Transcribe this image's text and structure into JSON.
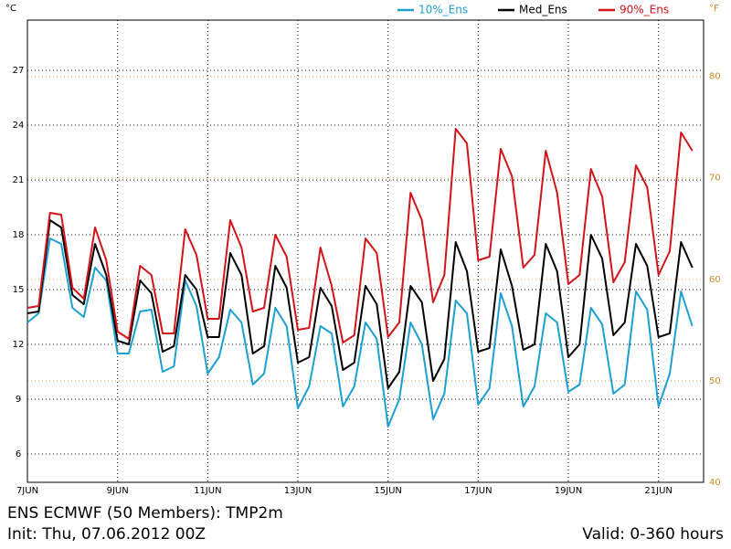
{
  "chart_data": {
    "type": "line",
    "title": "ENS ECMWF (50 Members): TMP2m",
    "subtitle": "Init: Thu, 07.06.2012 00Z",
    "annotation": "Valid: 0-360 hours",
    "y_label": "°C",
    "y2_label": "°F",
    "x": [
      0,
      6,
      12,
      18,
      24,
      30,
      36,
      42,
      48,
      54,
      60,
      66,
      72,
      78,
      84,
      90,
      96,
      102,
      108,
      114,
      120,
      126,
      132,
      138,
      144,
      150,
      156,
      162,
      168,
      174,
      180,
      186,
      192,
      198,
      204,
      210,
      216,
      222,
      228,
      234,
      240,
      246,
      252,
      258,
      264,
      270,
      276,
      282,
      288,
      294,
      300,
      306,
      312,
      318,
      324,
      330,
      336,
      342,
      348,
      354
    ],
    "xlim": [
      0,
      360
    ],
    "xticks": [
      {
        "value": 0,
        "label": "7JUN"
      },
      {
        "value": 48,
        "label": "9JUN"
      },
      {
        "value": 96,
        "label": "11JUN"
      },
      {
        "value": 144,
        "label": "13JUN"
      },
      {
        "value": 192,
        "label": "15JUN"
      },
      {
        "value": 240,
        "label": "17JUN"
      },
      {
        "value": 288,
        "label": "19JUN"
      },
      {
        "value": 336,
        "label": "21JUN"
      }
    ],
    "ylim": [
      4.45,
      29.75
    ],
    "yticks": [
      6,
      9,
      12,
      15,
      18,
      21,
      24,
      27
    ],
    "y2lim": [
      40,
      85.55
    ],
    "y2ticks": [
      40,
      50,
      60,
      70,
      80
    ],
    "grid": true,
    "legend": "top",
    "series": [
      {
        "name": "10%_Ens",
        "color": "#1e9fd2",
        "values": [
          13.2,
          13.7,
          17.8,
          17.5,
          14.0,
          13.5,
          16.2,
          15.5,
          11.5,
          11.5,
          13.8,
          13.9,
          10.5,
          10.8,
          15.5,
          14.1,
          10.4,
          11.3,
          13.9,
          13.2,
          9.8,
          10.4,
          14.0,
          13.0,
          8.5,
          9.7,
          13.0,
          12.6,
          8.6,
          9.7,
          13.2,
          12.3,
          7.5,
          9.0,
          13.2,
          12.0,
          7.9,
          9.3,
          14.4,
          13.7,
          8.7,
          9.6,
          14.8,
          13.0,
          8.6,
          9.7,
          13.7,
          13.2,
          9.4,
          9.8,
          14.0,
          13.1,
          9.3,
          9.8,
          14.9,
          13.9,
          8.6,
          10.4,
          14.9,
          13.0
        ]
      },
      {
        "name": "Med_Ens",
        "color": "#000000",
        "values": [
          13.7,
          13.8,
          18.8,
          18.4,
          14.7,
          14.2,
          17.5,
          15.8,
          12.2,
          12.0,
          15.5,
          14.8,
          11.6,
          11.9,
          15.8,
          15.0,
          12.4,
          12.4,
          17.0,
          15.8,
          11.5,
          11.9,
          16.3,
          15.1,
          11.0,
          11.3,
          15.1,
          14.1,
          10.6,
          11.0,
          15.2,
          14.2,
          9.6,
          10.5,
          15.2,
          14.3,
          10.0,
          11.2,
          17.6,
          16.0,
          11.6,
          11.8,
          17.2,
          15.2,
          11.7,
          12.0,
          17.5,
          16.0,
          11.3,
          12.0,
          18.0,
          16.7,
          12.5,
          13.2,
          17.5,
          16.3,
          12.4,
          12.6,
          17.6,
          16.2
        ]
      },
      {
        "name": "90%_Ens",
        "color": "#d0141a",
        "values": [
          14.0,
          14.1,
          19.2,
          19.1,
          15.1,
          14.5,
          18.4,
          16.6,
          12.7,
          12.3,
          16.3,
          15.8,
          12.6,
          12.6,
          18.3,
          16.9,
          13.4,
          13.4,
          18.8,
          17.3,
          13.8,
          14.0,
          18.0,
          16.8,
          12.8,
          12.9,
          17.3,
          15.2,
          12.1,
          12.5,
          17.8,
          17.0,
          12.4,
          13.2,
          20.3,
          18.8,
          14.3,
          15.8,
          23.8,
          23.0,
          16.6,
          16.8,
          22.7,
          21.2,
          16.2,
          16.9,
          22.6,
          20.3,
          15.3,
          15.8,
          21.6,
          20.1,
          15.4,
          16.5,
          21.8,
          20.6,
          15.8,
          17.1,
          23.6,
          22.6
        ]
      }
    ]
  }
}
